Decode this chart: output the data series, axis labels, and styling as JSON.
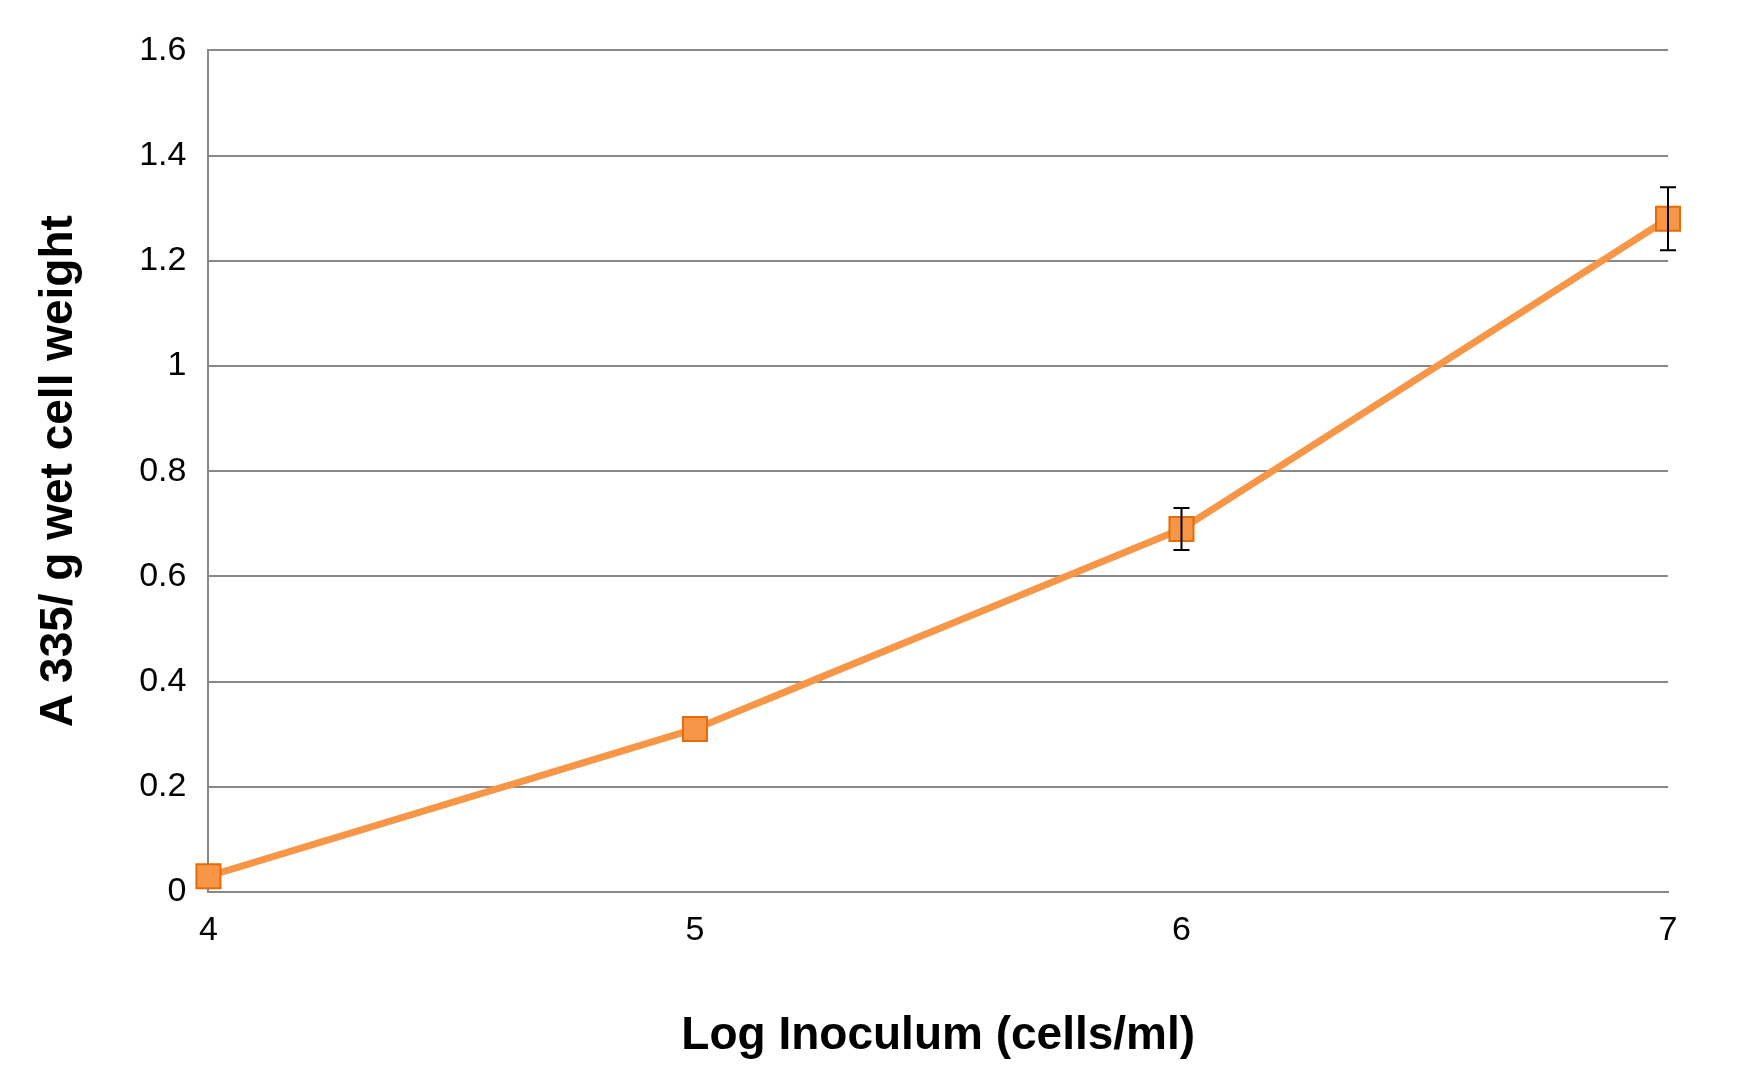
{
  "chart_data": {
    "type": "line",
    "xlabel": "Log Inoculum (cells/ml)",
    "ylabel": "A 335/ g wet cell weight",
    "x": [
      4,
      5,
      6,
      7
    ],
    "xlim": [
      4,
      7
    ],
    "xticks": [
      4,
      5,
      6,
      7
    ],
    "ylim": [
      0,
      1.6
    ],
    "yticks": [
      0,
      0.2,
      0.4,
      0.6,
      0.8,
      1,
      1.2,
      1.4,
      1.6
    ],
    "series": [
      {
        "color": "#f79646",
        "values": [
          0.03,
          0.31,
          0.69,
          1.28
        ],
        "errors": [
          null,
          null,
          0.04,
          0.06
        ]
      }
    ],
    "grid": "y",
    "legend": false,
    "marker": "square",
    "line_style": "solid"
  }
}
